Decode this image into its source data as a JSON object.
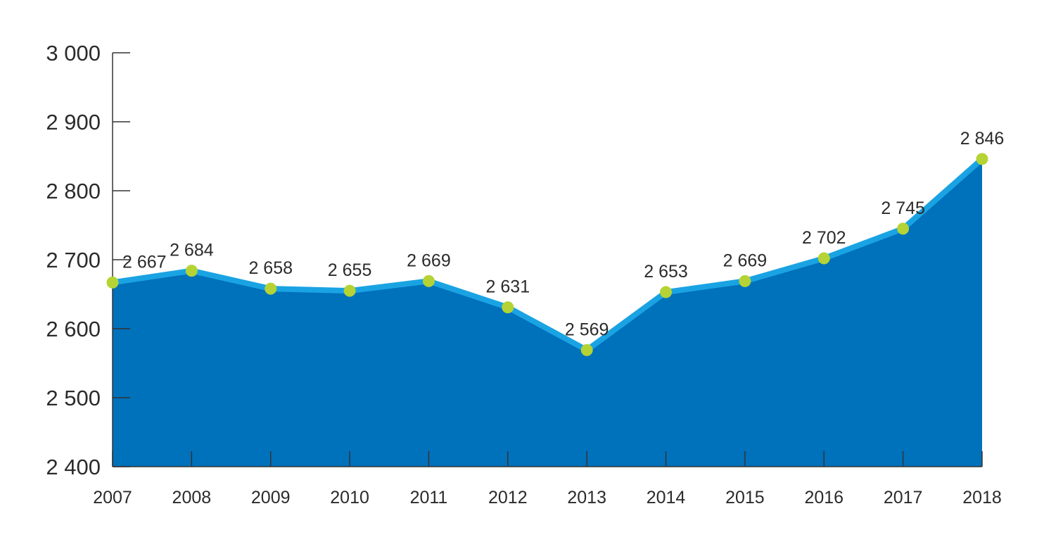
{
  "chart_data": {
    "type": "area",
    "title": "",
    "xlabel": "",
    "ylabel": "",
    "categories": [
      "2007",
      "2008",
      "2009",
      "2010",
      "2011",
      "2012",
      "2013",
      "2014",
      "2015",
      "2016",
      "2017",
      "2018"
    ],
    "values": [
      2667,
      2684,
      2658,
      2655,
      2669,
      2631,
      2569,
      2653,
      2669,
      2702,
      2745,
      2846
    ],
    "value_labels": [
      "2 667",
      "2 684",
      "2 658",
      "2 655",
      "2 669",
      "2 631",
      "2 569",
      "2 653",
      "2 669",
      "2 702",
      "2 745",
      "2 846"
    ],
    "ylim": [
      2400,
      3000
    ],
    "y_ticks": [
      2400,
      2500,
      2600,
      2700,
      2800,
      2900,
      3000
    ],
    "y_tick_labels": [
      "2 400",
      "2 500",
      "2 600",
      "2 700",
      "2 800",
      "2 900",
      "3 000"
    ],
    "grid": false,
    "legend": "none",
    "colors": {
      "area_fill": "#0071bb",
      "line": "#1aa3e3",
      "marker": "#b5d334",
      "axis": "#333333",
      "text": "#2b2b2b"
    }
  }
}
